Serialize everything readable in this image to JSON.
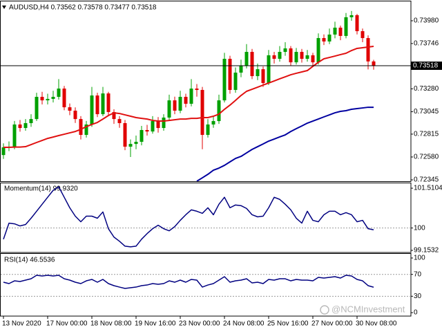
{
  "chart_data": [
    {
      "type": "candlestick",
      "title": "AUDUSD,H4 0.73562 0.73578 0.73477 0.73518",
      "categories": [
        "13 Nov 2020",
        null,
        null,
        null,
        null,
        null,
        null,
        null,
        "17 Nov 00:00",
        null,
        null,
        null,
        null,
        null,
        null,
        null,
        "18 Nov 08:00",
        null,
        null,
        null,
        null,
        null,
        null,
        null,
        "19 Nov 16:00",
        null,
        null,
        null,
        null,
        null,
        null,
        null,
        "23 Nov 00:00",
        null,
        null,
        null,
        null,
        null,
        null,
        null,
        "24 Nov 08:00",
        null,
        null,
        null,
        null,
        null,
        null,
        null,
        "25 Nov 16:00",
        null,
        null,
        null,
        null,
        null,
        null,
        null,
        "27 Nov 00:00",
        null,
        null,
        null,
        null,
        null,
        null,
        null,
        "30 Nov 08:00",
        null,
        null,
        null
      ],
      "open": [
        0.726,
        0.72679,
        0.72686,
        0.72914,
        0.72878,
        0.72928,
        0.7297,
        0.73198,
        0.73162,
        0.73177,
        0.73198,
        0.73283,
        0.73091,
        0.73056,
        0.7297,
        0.72807,
        0.72914,
        0.73212,
        0.7302,
        0.73233,
        0.73042,
        0.7297,
        0.72928,
        0.72686,
        0.72714,
        0.72736,
        0.72857,
        0.72842,
        0.72949,
        0.72878,
        0.72985,
        0.73162,
        0.73056,
        0.73198,
        0.73127,
        0.73283,
        0.73269,
        0.72807,
        0.72914,
        0.72949,
        0.73162,
        0.73589,
        0.73269,
        0.73447,
        0.73518,
        0.7366,
        0.73411,
        0.73482,
        0.7334,
        0.73625,
        0.73589,
        0.7366,
        0.73696,
        0.73553,
        0.7366,
        0.73589,
        0.73625,
        0.73553,
        0.73802,
        0.73767,
        0.73838,
        0.73909,
        0.73824,
        0.74016,
        0.74037,
        0.73873,
        0.73802,
        0.73562
      ],
      "high": [
        0.7272,
        0.7274,
        0.7295,
        0.7296,
        0.7297,
        0.7302,
        0.7324,
        0.7325,
        0.7323,
        0.7326,
        0.7338,
        0.7331,
        0.7313,
        0.7309,
        0.73,
        0.7295,
        0.733,
        0.7324,
        0.733,
        0.7325,
        0.7307,
        0.73,
        0.7296,
        0.7276,
        0.728,
        0.729,
        0.7291,
        0.73,
        0.7299,
        0.7302,
        0.7322,
        0.732,
        0.7326,
        0.7323,
        0.7338,
        0.7333,
        0.733,
        0.7297,
        0.73,
        0.7322,
        0.7365,
        0.7362,
        0.735,
        0.7358,
        0.7374,
        0.7369,
        0.7354,
        0.7351,
        0.7368,
        0.7366,
        0.7372,
        0.7376,
        0.7372,
        0.737,
        0.7369,
        0.7368,
        0.7365,
        0.7385,
        0.7384,
        0.739,
        0.7397,
        0.7393,
        0.7406,
        0.7408,
        0.7405,
        0.739,
        0.7383,
        0.73578
      ],
      "low": [
        0.7256,
        0.7264,
        0.7266,
        0.7284,
        0.7285,
        0.7289,
        0.7295,
        0.7312,
        0.7312,
        0.7314,
        0.7317,
        0.7306,
        0.7301,
        0.7293,
        0.7276,
        0.7278,
        0.7289,
        0.7299,
        0.73,
        0.7301,
        0.7292,
        0.7288,
        0.7265,
        0.7258,
        0.7266,
        0.727,
        0.728,
        0.7282,
        0.7283,
        0.7285,
        0.7296,
        0.7302,
        0.7303,
        0.7309,
        0.731,
        0.732,
        0.7266,
        0.7278,
        0.7288,
        0.7292,
        0.7314,
        0.7323,
        0.7324,
        0.734,
        0.7349,
        0.7338,
        0.7337,
        0.733,
        0.7332,
        0.7354,
        0.7356,
        0.7362,
        0.7352,
        0.7353,
        0.7355,
        0.7356,
        0.7351,
        0.7353,
        0.7373,
        0.7374,
        0.738,
        0.7378,
        0.738,
        0.7398,
        0.7384,
        0.7376,
        0.7348,
        0.73477
      ],
      "close": [
        0.72679,
        0.72686,
        0.72914,
        0.72878,
        0.72928,
        0.7297,
        0.73198,
        0.73162,
        0.73177,
        0.73198,
        0.73283,
        0.73091,
        0.73056,
        0.7297,
        0.72807,
        0.72914,
        0.73212,
        0.7302,
        0.73233,
        0.73042,
        0.7297,
        0.72928,
        0.72686,
        0.72714,
        0.72736,
        0.72857,
        0.72842,
        0.72949,
        0.72878,
        0.72985,
        0.73162,
        0.73056,
        0.73198,
        0.73127,
        0.73283,
        0.73269,
        0.72807,
        0.72914,
        0.72949,
        0.73162,
        0.73589,
        0.73269,
        0.73447,
        0.73518,
        0.7366,
        0.73411,
        0.73482,
        0.7334,
        0.73625,
        0.73589,
        0.7366,
        0.73696,
        0.73553,
        0.7366,
        0.73589,
        0.73625,
        0.73553,
        0.73802,
        0.73767,
        0.73838,
        0.73909,
        0.73824,
        0.74016,
        0.74037,
        0.73873,
        0.73802,
        0.73562,
        0.73518
      ],
      "up_color": "#00a000",
      "down_color": "#e00000",
      "overlays": [
        {
          "color": "#e01010",
          "values": [
            0.72679,
            0.72679,
            0.72682,
            0.72682,
            0.72686,
            0.72707,
            0.72729,
            0.7275,
            0.72771,
            0.72785,
            0.728,
            0.72814,
            0.72828,
            0.72842,
            0.72864,
            0.72892,
            0.72914,
            0.72935,
            0.7297,
            0.73006,
            0.73034,
            0.73027,
            0.73013,
            0.72999,
            0.72985,
            0.72977,
            0.7297,
            0.72956,
            0.72949,
            0.72949,
            0.72956,
            0.72963,
            0.7297,
            0.7297,
            0.72977,
            0.72977,
            0.72985,
            0.72985,
            0.72999,
            0.7302,
            0.7307,
            0.73113,
            0.73162,
            0.73212,
            0.73255,
            0.73276,
            0.73297,
            0.73319,
            0.7334,
            0.73361,
            0.73383,
            0.73404,
            0.73425,
            0.7344,
            0.73454,
            0.73468,
            0.73511,
            0.73553,
            0.73589,
            0.73603,
            0.73617,
            0.73632,
            0.73646,
            0.73674,
            0.73696,
            0.73703,
            0.7371,
            0.73717
          ]
        },
        {
          "color": "#0000a0",
          "values": [
            null,
            null,
            null,
            null,
            null,
            null,
            null,
            null,
            null,
            null,
            null,
            null,
            null,
            null,
            null,
            null,
            null,
            null,
            null,
            null,
            null,
            null,
            null,
            null,
            null,
            null,
            null,
            null,
            null,
            null,
            null,
            null,
            null,
            null,
            null,
            0.72331,
            0.72366,
            0.72402,
            0.72444,
            0.72466,
            0.72494,
            0.7253,
            0.72565,
            0.72586,
            0.72622,
            0.72658,
            0.72686,
            0.72714,
            0.72743,
            0.72764,
            0.72786,
            0.72807,
            0.72842,
            0.72871,
            0.72899,
            0.72928,
            0.72949,
            0.7297,
            0.72992,
            0.73013,
            0.73034,
            0.73049,
            0.73056,
            0.7307,
            0.73077,
            0.73084,
            0.73091,
            0.73091
          ]
        }
      ],
      "last_price": 0.73518,
      "ylim": [
        0.72331,
        0.74179
      ],
      "yticks": [
        {
          "value": 0.7398,
          "label": "0.73980"
        },
        0.73746,
        {
          "value": 0.7328,
          "label": "0.73280"
        },
        0.73045,
        0.72815,
        {
          "value": 0.7258,
          "label": "0.72580"
        },
        0.72345
      ]
    },
    {
      "type": "line",
      "title": "Momentum(14) 99.9320",
      "color": "#000080",
      "values": [
        99.576,
        100.185,
        100.159,
        100.079,
        100.132,
        100.371,
        100.636,
        100.901,
        101.166,
        101.431,
        101.564,
        101.166,
        100.768,
        100.45,
        100.238,
        100.45,
        100.45,
        100.371,
        100.609,
        99.974,
        99.656,
        99.497,
        99.311,
        99.285,
        99.311,
        99.576,
        99.788,
        99.974,
        100.106,
        99.974,
        99.894,
        100.053,
        100.291,
        100.503,
        100.689,
        100.636,
        100.556,
        100.768,
        100.503,
        100.901,
        101.166,
        100.768,
        100.874,
        100.848,
        100.742,
        100.503,
        100.424,
        100.45,
        100.768,
        101.166,
        101.086,
        100.901,
        100.689,
        100.371,
        100.185,
        100.636,
        100.291,
        100.238,
        100.503,
        100.636,
        100.636,
        100.503,
        100.583,
        100.503,
        100.238,
        100.291,
        99.974,
        99.932
      ],
      "levels": [
        100
      ],
      "ylim": [
        99.073,
        101.696
      ],
      "yticks": [
        101.5104,
        100,
        99.1532
      ]
    },
    {
      "type": "line",
      "title": "RSI(14) 46.5536",
      "color": "#000080",
      "values": [
        55.7,
        53.2,
        58.2,
        57.0,
        59.5,
        62.0,
        68.4,
        67.1,
        68.4,
        67.1,
        68.4,
        62.0,
        59.5,
        55.7,
        53.2,
        58.2,
        60.8,
        55.7,
        60.8,
        53.2,
        49.4,
        46.8,
        44.3,
        45.6,
        46.8,
        49.4,
        50.6,
        53.2,
        51.9,
        53.2,
        58.2,
        55.7,
        59.5,
        55.7,
        60.8,
        59.5,
        46.8,
        50.6,
        53.2,
        59.5,
        65.8,
        55.7,
        58.2,
        59.5,
        62.0,
        54.4,
        55.7,
        53.2,
        60.8,
        59.5,
        62.0,
        62.0,
        58.2,
        60.8,
        59.5,
        59.5,
        58.2,
        64.6,
        63.3,
        64.6,
        65.8,
        63.3,
        68.4,
        67.1,
        60.8,
        58.2,
        49.4,
        46.5536
      ],
      "levels": [
        70,
        30
      ],
      "ylim": [
        -6.3,
        107.6
      ],
      "yticks": [
        100,
        70,
        30,
        0
      ]
    }
  ],
  "watermark": "@NCMInvestment"
}
